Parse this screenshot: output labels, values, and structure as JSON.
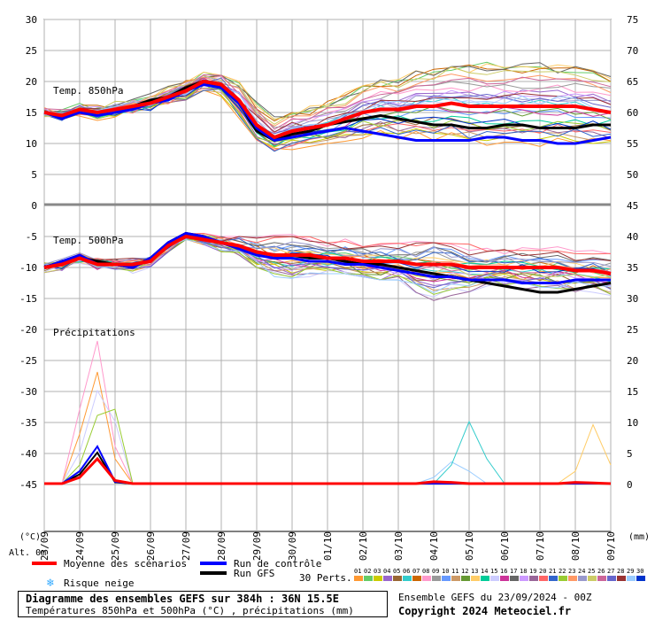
{
  "chart_data": {
    "type": "line",
    "title": "Diagramme des ensembles GEFS sur 384h : 36N 15.5E",
    "subtitle": "Températures 850hPa et 500hPa (°C) , précipitations (mm)",
    "run_info": "Ensemble GEFS du 23/09/2024 - 00Z",
    "copyright": "Copyright 2024 Meteociel.fr",
    "x_tick_labels": [
      "23/09",
      "24/09",
      "25/09",
      "26/09",
      "27/09",
      "28/09",
      "29/09",
      "30/09",
      "01/10",
      "02/10",
      "03/10",
      "04/10",
      "05/10",
      "06/10",
      "07/10",
      "08/10",
      "09/10"
    ],
    "y_left_ticks": [
      30,
      25,
      20,
      15,
      10,
      5,
      0,
      -5,
      -10,
      -15,
      -20,
      -25,
      -30,
      -35,
      -40,
      -45
    ],
    "y_right_ticks": [
      75,
      70,
      65,
      60,
      55,
      50,
      45,
      40,
      35,
      30,
      25,
      20,
      15,
      10,
      5,
      0
    ],
    "y_left_label": "(°C)",
    "y_right_label": "(mm)",
    "alt_label": "Alt. 0m",
    "panel_labels": {
      "t850": "Temp. 850hPa",
      "t500": "Temp. 500hPa",
      "precip": "Précipitations"
    },
    "legend": {
      "mean": "Moyenne des scénarios",
      "control": "Run de contrôle",
      "gfs": "Run GFS",
      "snow": "Risque neige",
      "perts": "30 Perts."
    },
    "member_labels": [
      "01",
      "02",
      "03",
      "04",
      "05",
      "06",
      "07",
      "08",
      "09",
      "10",
      "11",
      "12",
      "13",
      "14",
      "15",
      "16",
      "17",
      "18",
      "19",
      "20",
      "21",
      "22",
      "23",
      "24",
      "25",
      "26",
      "27",
      "28",
      "29",
      "30"
    ],
    "member_colors": [
      "#ff9933",
      "#66cc66",
      "#cccc00",
      "#9966cc",
      "#996633",
      "#33cccc",
      "#cc6600",
      "#ff99cc",
      "#999999",
      "#6699ff",
      "#cc9966",
      "#669933",
      "#ffcc66",
      "#00cc99",
      "#ccccff",
      "#cc3399",
      "#666666",
      "#cc99ff",
      "#996699",
      "#ff6666",
      "#3366cc",
      "#99cc33",
      "#ff9966",
      "#9999cc",
      "#cccc66",
      "#cc6699",
      "#6666cc",
      "#993333",
      "#99ccff",
      "#0033cc"
    ],
    "series_colors": {
      "mean": "#ff0000",
      "control": "#0000ff",
      "gfs": "#000000"
    },
    "x_days": [
      0,
      0.5,
      1,
      1.5,
      2,
      2.5,
      3,
      3.5,
      4,
      4.5,
      5,
      5.5,
      6,
      6.5,
      7,
      7.5,
      8,
      8.5,
      9,
      9.5,
      10,
      10.5,
      11,
      11.5,
      12,
      12.5,
      13,
      13.5,
      14,
      14.5,
      15,
      15.5,
      16
    ],
    "t850": {
      "mean": [
        15,
        14.5,
        15.5,
        15,
        15.5,
        16,
        16.5,
        17.5,
        18.5,
        20,
        19.5,
        17,
        13,
        11,
        12,
        12.5,
        13,
        14,
        15,
        15.5,
        15.5,
        16,
        16,
        16.5,
        16,
        16,
        16,
        16,
        16,
        16,
        16,
        15.5,
        15
      ],
      "control": [
        15,
        14,
        15,
        14.5,
        15,
        15.5,
        16.5,
        17,
        18.5,
        19.5,
        19,
        16.5,
        12.5,
        10.5,
        11,
        11.5,
        12,
        12.5,
        12,
        11.5,
        11,
        10.5,
        10.5,
        10.5,
        10.5,
        11,
        11,
        10.5,
        10.5,
        10,
        10,
        10.5,
        11
      ],
      "gfs": [
        15,
        14.5,
        15.5,
        15,
        15.5,
        16,
        17,
        17.5,
        19,
        20,
        19,
        16.5,
        12,
        10.5,
        11.5,
        12,
        13,
        13.5,
        14,
        14.5,
        14,
        13.5,
        13,
        13,
        12.5,
        12.5,
        13,
        13,
        12.5,
        12.5,
        12.5,
        13,
        13
      ],
      "spread_low": [
        14,
        13,
        14,
        13.5,
        14,
        14.5,
        15,
        16,
        17,
        18,
        17,
        13,
        9,
        8,
        9,
        9.5,
        10,
        10,
        10,
        9.5,
        9,
        9,
        9,
        9,
        9,
        9,
        9,
        9,
        8.5,
        8.5,
        8.5,
        8,
        7.5
      ],
      "spread_high": [
        16,
        16,
        17,
        17,
        17,
        17.5,
        18.5,
        19.5,
        21,
        21.5,
        21,
        20,
        17,
        15,
        16,
        17,
        18,
        19,
        20,
        20.5,
        21,
        22,
        23,
        24,
        25,
        25.5,
        25.5,
        25,
        25,
        24.5,
        24,
        23,
        22
      ]
    },
    "t500": {
      "mean": [
        -10,
        -9.5,
        -8.5,
        -9.5,
        -9.5,
        -9.5,
        -9,
        -6.5,
        -5,
        -5.5,
        -6,
        -6.5,
        -7.5,
        -8,
        -8,
        -8,
        -8.5,
        -8.5,
        -9,
        -9,
        -9,
        -9.5,
        -9.5,
        -9.5,
        -10,
        -10,
        -10,
        -10,
        -10,
        -10,
        -10.5,
        -10.5,
        -11
      ],
      "control": [
        -10,
        -9,
        -8,
        -9.5,
        -9.5,
        -10,
        -8.5,
        -6,
        -4.5,
        -5,
        -6,
        -7,
        -8,
        -8.5,
        -8.5,
        -9,
        -9,
        -9.5,
        -9.5,
        -10,
        -10.5,
        -11,
        -11.5,
        -11.5,
        -12,
        -12,
        -12,
        -12.5,
        -12.5,
        -12.5,
        -12,
        -12,
        -12
      ],
      "gfs": [
        -10,
        -9,
        -8.5,
        -9,
        -9.5,
        -10,
        -8.5,
        -6,
        -4.5,
        -5,
        -6,
        -6.5,
        -7.5,
        -8,
        -8,
        -8.5,
        -8.5,
        -9,
        -9.5,
        -9.5,
        -10,
        -10.5,
        -11,
        -11.5,
        -12,
        -12.5,
        -13,
        -13.5,
        -14,
        -14,
        -13.5,
        -13,
        -12.5
      ],
      "spread_low": [
        -11,
        -11,
        -9.5,
        -10.5,
        -10.5,
        -11.5,
        -10,
        -7.5,
        -5.5,
        -6.5,
        -7.5,
        -8,
        -10,
        -12,
        -13,
        -11.5,
        -11,
        -11,
        -11.5,
        -12,
        -12.5,
        -15,
        -18,
        -16,
        -14,
        -13,
        -13,
        -13.5,
        -14,
        -14,
        -14,
        -14,
        -14.5
      ],
      "spread_high": [
        -9,
        -8,
        -7.5,
        -8.5,
        -8.5,
        -8.5,
        -7.5,
        -5.5,
        -4,
        -4.5,
        -5,
        -5,
        -5,
        -4.5,
        -4.5,
        -4.5,
        -5,
        -5,
        -5,
        -5,
        -5.5,
        -5.5,
        -6,
        -6,
        -6,
        -6.5,
        -6.5,
        -6.5,
        -6.5,
        -6.5,
        -7,
        -7,
        -7
      ]
    },
    "precip": {
      "mean": [
        0,
        0,
        1,
        4,
        0.5,
        0,
        0,
        0,
        0,
        0,
        0,
        0,
        0,
        0,
        0,
        0,
        0,
        0,
        0,
        0,
        0,
        0,
        0.3,
        0.2,
        0,
        0,
        0,
        0,
        0,
        0,
        0.2,
        0.1,
        0
      ],
      "control": [
        0,
        0,
        2,
        6,
        0.3,
        0,
        0,
        0,
        0,
        0,
        0,
        0,
        0,
        0,
        0,
        0,
        0,
        0,
        0,
        0,
        0,
        0,
        0,
        0,
        0,
        0,
        0,
        0,
        0,
        0,
        0,
        0,
        0
      ],
      "gfs": [
        0,
        0,
        1.5,
        5,
        0.2,
        0,
        0,
        0,
        0,
        0,
        0,
        0,
        0,
        0,
        0,
        0,
        0,
        0,
        0,
        0,
        0,
        0,
        0,
        0,
        0,
        0,
        0,
        0,
        0,
        0,
        0,
        0,
        0
      ],
      "peak_members": [
        {
          "x": [
            0.5,
            1,
            1.5,
            2,
            2.5
          ],
          "values": [
            0,
            8,
            18,
            4,
            0
          ]
        },
        {
          "x": [
            0.5,
            1,
            1.5,
            2,
            2.5
          ],
          "values": [
            0,
            12,
            23,
            6,
            0
          ]
        },
        {
          "x": [
            0.5,
            1,
            1.5,
            2,
            2.5
          ],
          "values": [
            0,
            5,
            15,
            10,
            0
          ]
        },
        {
          "x": [
            0.5,
            1,
            1.5,
            2,
            2.5
          ],
          "values": [
            0,
            3,
            11,
            12,
            0
          ]
        },
        {
          "x": [
            10.5,
            11,
            11.5,
            12,
            12.5
          ],
          "values": [
            0,
            1,
            3.5,
            2,
            0
          ]
        },
        {
          "x": [
            11,
            11.5,
            12,
            12.5,
            13
          ],
          "values": [
            0,
            3,
            10,
            4,
            0
          ]
        },
        {
          "x": [
            14.5,
            15,
            15.5,
            16
          ],
          "values": [
            0,
            2,
            9.5,
            3
          ]
        }
      ]
    },
    "snow_risk": "none"
  }
}
